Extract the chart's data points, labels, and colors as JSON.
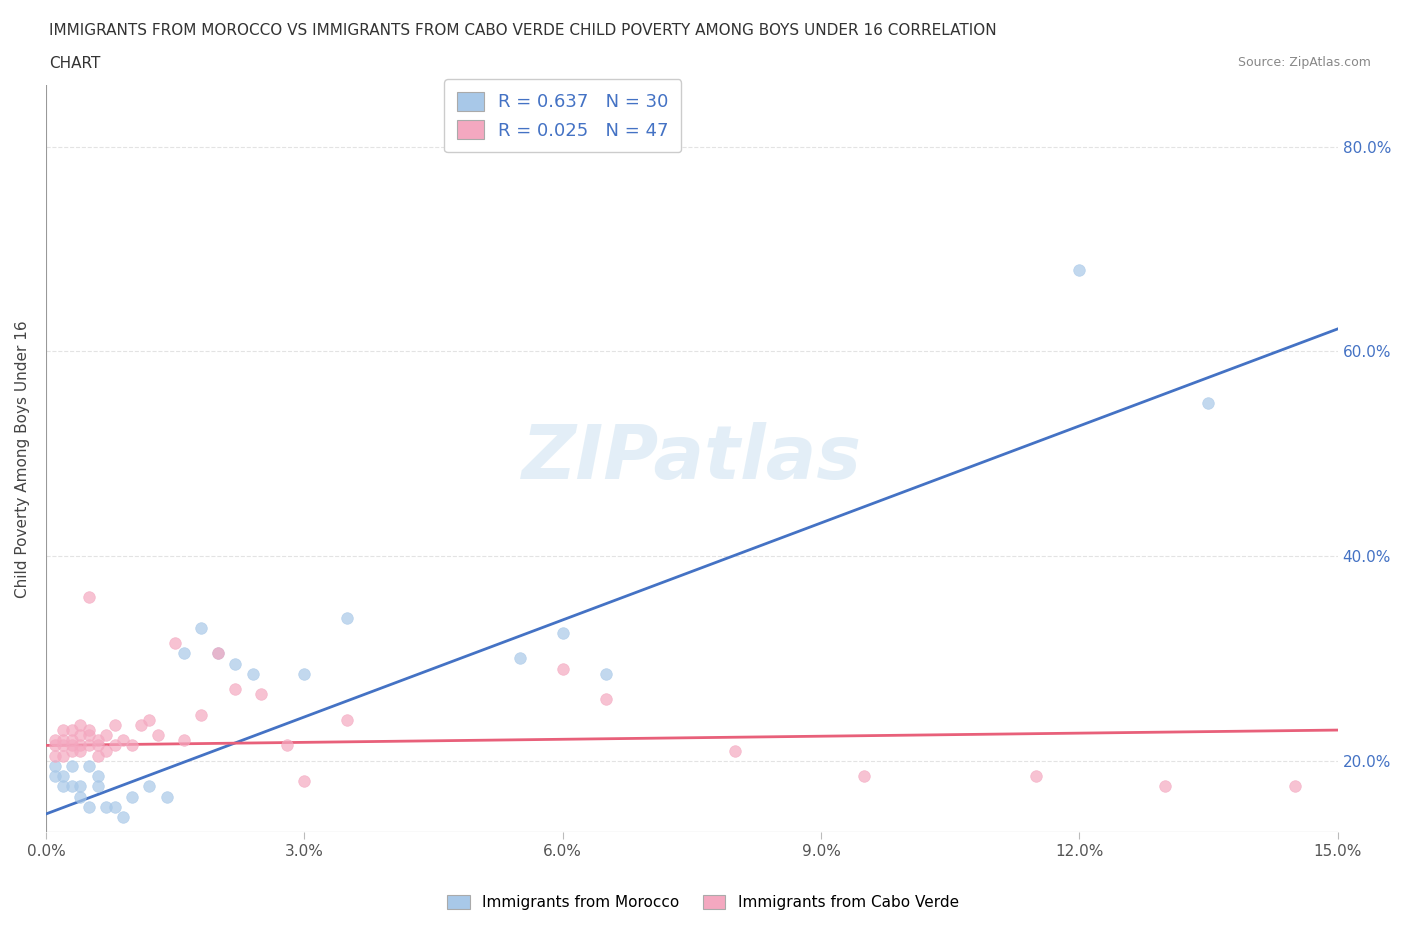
{
  "title_line1": "IMMIGRANTS FROM MOROCCO VS IMMIGRANTS FROM CABO VERDE CHILD POVERTY AMONG BOYS UNDER 16 CORRELATION",
  "title_line2": "CHART",
  "source": "Source: ZipAtlas.com",
  "ylabel": "Child Poverty Among Boys Under 16",
  "xlim": [
    0.0,
    0.15
  ],
  "ylim": [
    0.13,
    0.86
  ],
  "xticks": [
    0.0,
    0.03,
    0.06,
    0.09,
    0.12,
    0.15
  ],
  "xticklabels": [
    "0.0%",
    "3.0%",
    "6.0%",
    "9.0%",
    "12.0%",
    "15.0%"
  ],
  "yticks": [
    0.2,
    0.4,
    0.6,
    0.8
  ],
  "yticklabels_right": [
    "20.0%",
    "40.0%",
    "60.0%",
    "80.0%"
  ],
  "watermark": "ZIPatlas",
  "morocco_color": "#a8c8e8",
  "morocco_line_color": "#4472c4",
  "caboverde_color": "#f4a8c0",
  "caboverde_line_color": "#e8607a",
  "morocco_R": 0.637,
  "morocco_N": 30,
  "caboverde_R": 0.025,
  "caboverde_N": 47,
  "morocco_scatter_x": [
    0.001,
    0.001,
    0.002,
    0.002,
    0.003,
    0.003,
    0.004,
    0.004,
    0.005,
    0.005,
    0.006,
    0.006,
    0.007,
    0.008,
    0.009,
    0.01,
    0.012,
    0.014,
    0.016,
    0.018,
    0.02,
    0.022,
    0.024,
    0.03,
    0.035,
    0.055,
    0.06,
    0.065,
    0.12,
    0.135
  ],
  "morocco_scatter_y": [
    0.195,
    0.185,
    0.175,
    0.185,
    0.195,
    0.175,
    0.165,
    0.175,
    0.195,
    0.155,
    0.175,
    0.185,
    0.155,
    0.155,
    0.145,
    0.165,
    0.175,
    0.165,
    0.305,
    0.33,
    0.305,
    0.295,
    0.285,
    0.285,
    0.34,
    0.3,
    0.325,
    0.285,
    0.68,
    0.55
  ],
  "caboverde_scatter_x": [
    0.001,
    0.001,
    0.001,
    0.002,
    0.002,
    0.002,
    0.002,
    0.003,
    0.003,
    0.003,
    0.003,
    0.004,
    0.004,
    0.004,
    0.004,
    0.005,
    0.005,
    0.005,
    0.005,
    0.006,
    0.006,
    0.006,
    0.007,
    0.007,
    0.008,
    0.008,
    0.009,
    0.01,
    0.011,
    0.012,
    0.013,
    0.015,
    0.016,
    0.018,
    0.02,
    0.022,
    0.025,
    0.028,
    0.03,
    0.035,
    0.06,
    0.065,
    0.08,
    0.095,
    0.115,
    0.13,
    0.145
  ],
  "caboverde_scatter_y": [
    0.22,
    0.215,
    0.205,
    0.215,
    0.22,
    0.205,
    0.23,
    0.21,
    0.215,
    0.22,
    0.23,
    0.215,
    0.225,
    0.235,
    0.21,
    0.215,
    0.225,
    0.23,
    0.36,
    0.215,
    0.22,
    0.205,
    0.225,
    0.21,
    0.235,
    0.215,
    0.22,
    0.215,
    0.235,
    0.24,
    0.225,
    0.315,
    0.22,
    0.245,
    0.305,
    0.27,
    0.265,
    0.215,
    0.18,
    0.24,
    0.29,
    0.26,
    0.21,
    0.185,
    0.185,
    0.175,
    0.175
  ],
  "legend_label_morocco": "Immigrants from Morocco",
  "legend_label_caboverde": "Immigrants from Cabo Verde",
  "background_color": "#ffffff",
  "scatter_size": 70,
  "scatter_alpha": 0.7
}
